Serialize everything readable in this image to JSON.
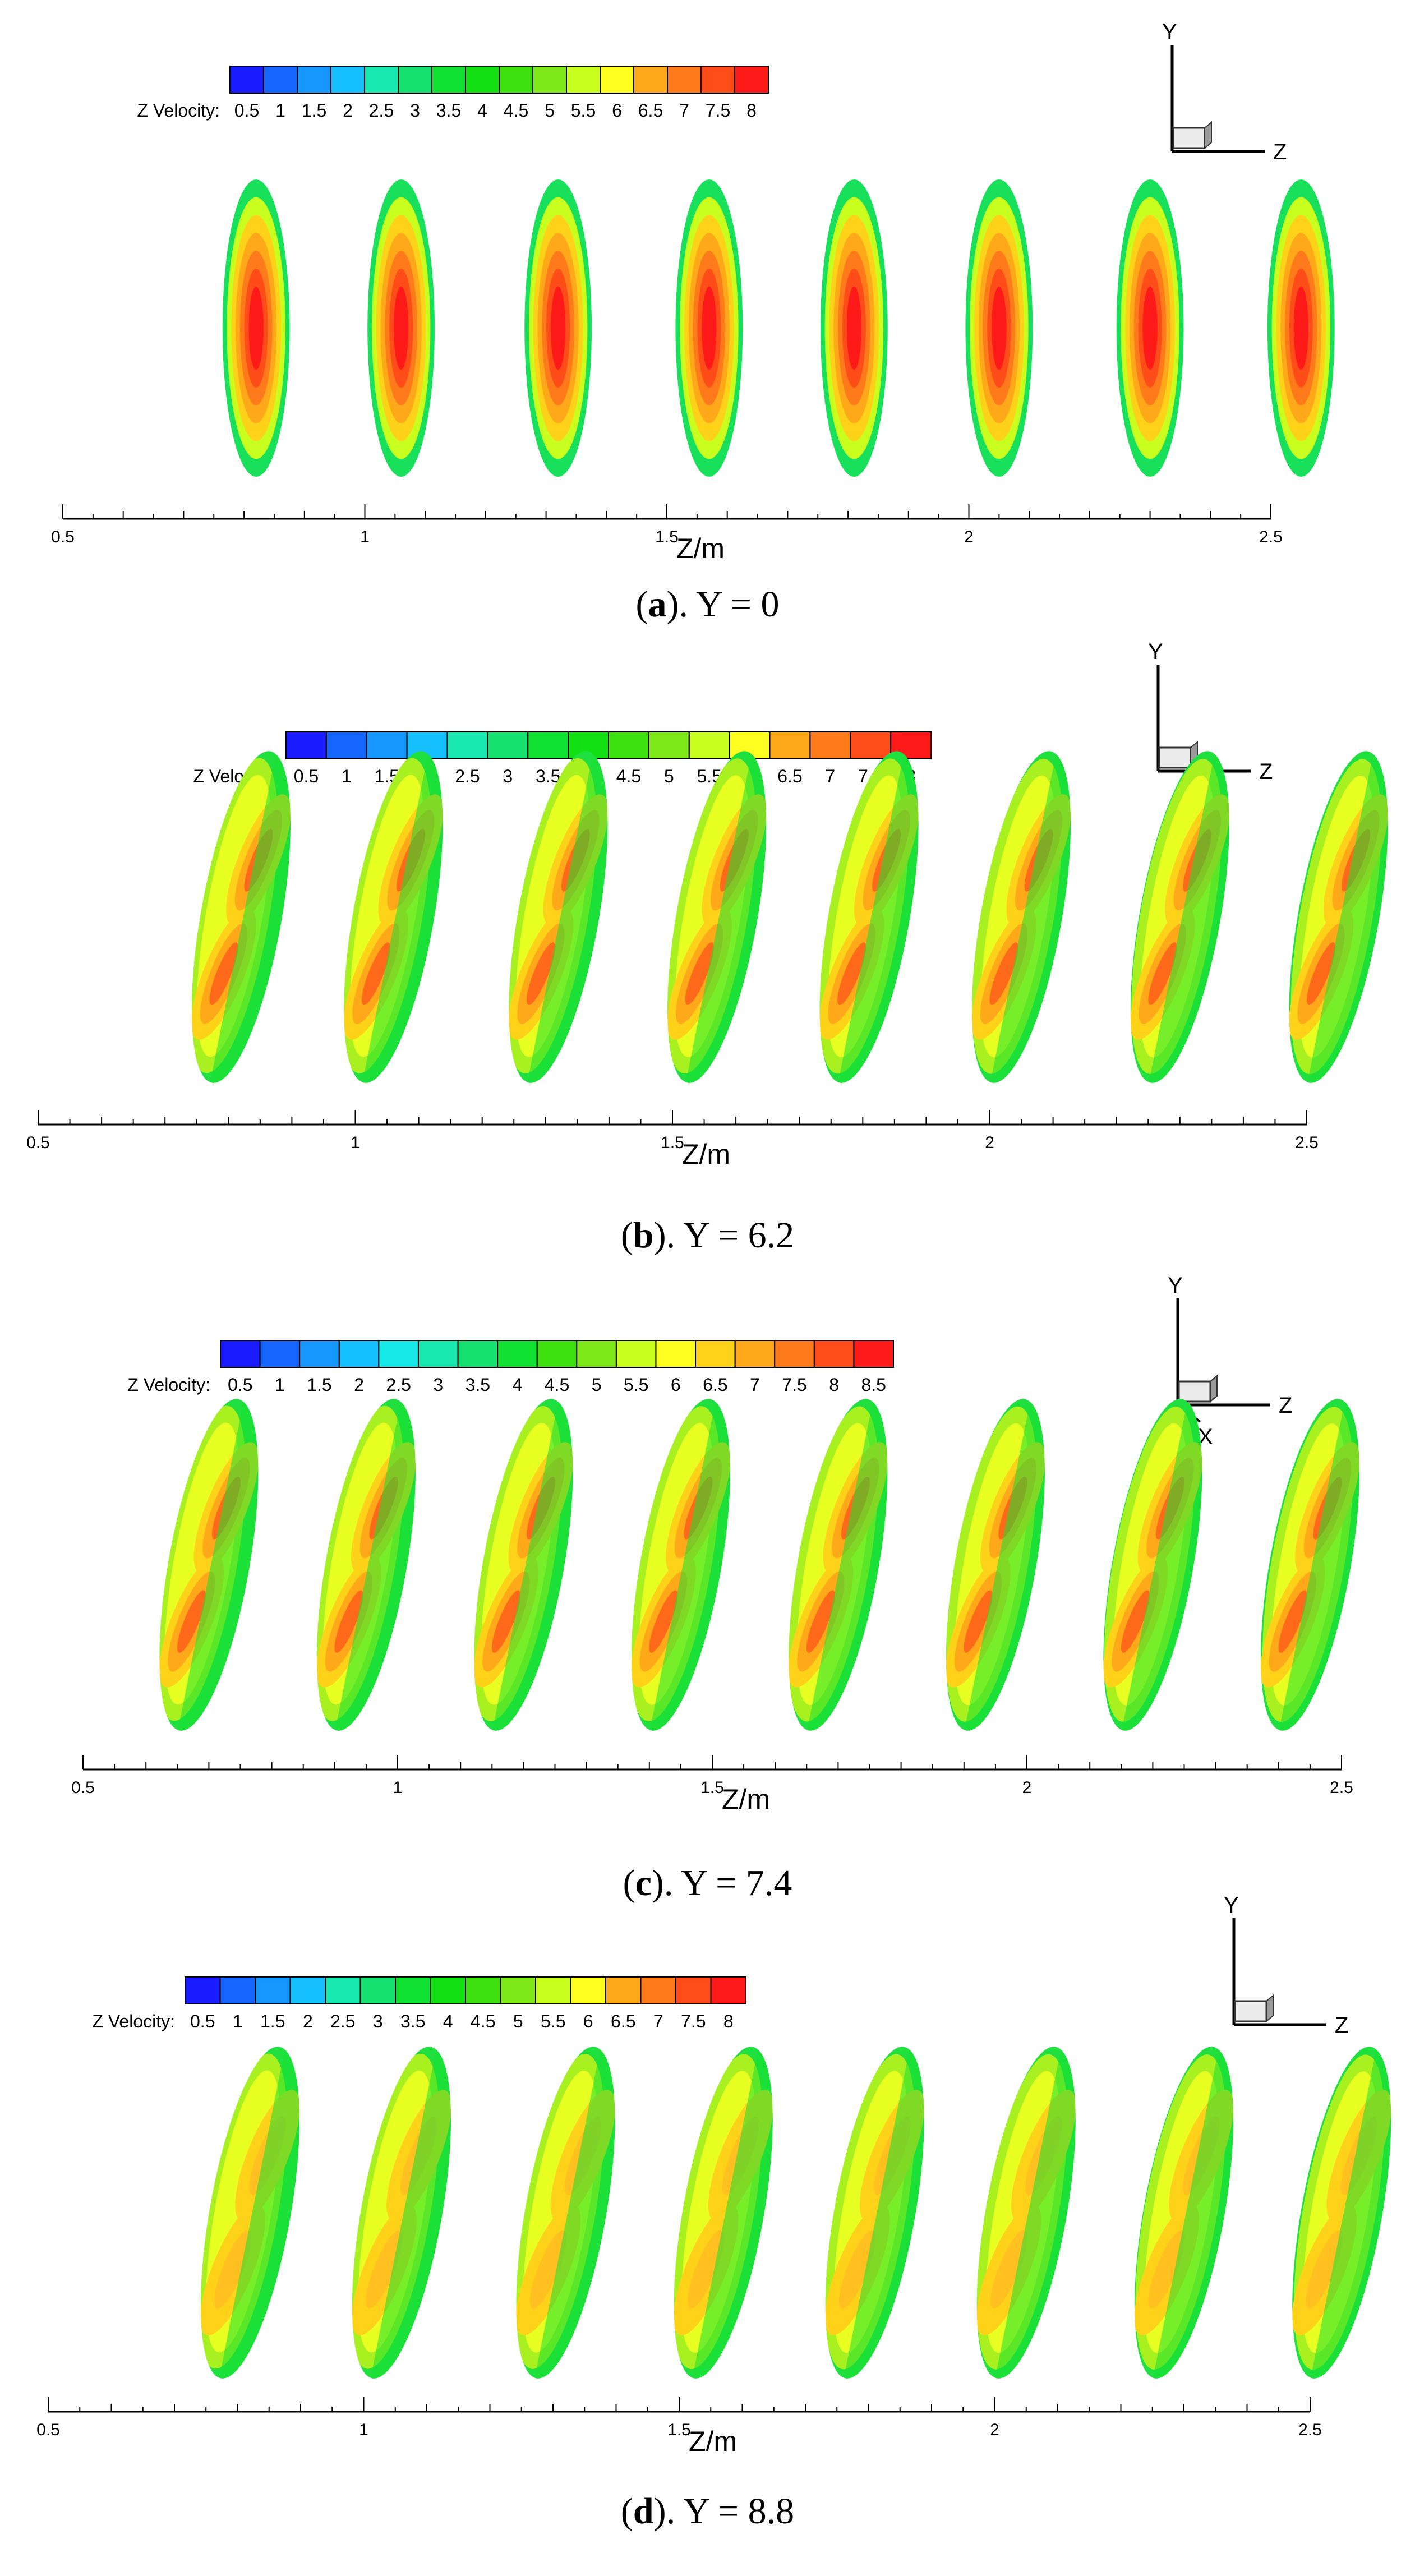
{
  "chart_data": [
    {
      "type": "heatmap",
      "panel": "a",
      "caption": {
        "letter": "a",
        "rest": "). Y = 0"
      },
      "colorbar": {
        "label": "Z Velocity:",
        "levels": [
          "0.5",
          "1",
          "1.5",
          "2",
          "2.5",
          "3",
          "3.5",
          "4",
          "4.5",
          "5",
          "5.5",
          "6",
          "6.5",
          "7",
          "7.5",
          "8"
        ]
      },
      "xaxis": {
        "label": "Z/m",
        "ticks": [
          "0.5",
          "1",
          "1.5",
          "2",
          "2.5"
        ],
        "range": [
          0.5,
          2.5
        ]
      },
      "axes_triad": {
        "y": "Y",
        "z": "Z",
        "x": ""
      },
      "slices_z": [
        0.82,
        1.06,
        1.32,
        1.57,
        1.81,
        2.05,
        2.3,
        2.55
      ],
      "pattern": "symmetric"
    },
    {
      "type": "heatmap",
      "panel": "b",
      "caption": {
        "letter": "b",
        "rest": "). Y = 6.2"
      },
      "colorbar": {
        "label": "Z Velocity:",
        "levels": [
          "0.5",
          "1",
          "1.5",
          "2",
          "2.5",
          "3",
          "3.5",
          "4",
          "4.5",
          "5",
          "5.5",
          "6",
          "6.5",
          "7",
          "7.5",
          "8"
        ]
      },
      "xaxis": {
        "label": "Z/m",
        "ticks": [
          "0.5",
          "1",
          "1.5",
          "2",
          "2.5"
        ],
        "range": [
          0.5,
          2.5
        ]
      },
      "axes_triad": {
        "y": "Y",
        "z": "Z",
        "x": ""
      },
      "slices_z": [
        0.82,
        1.06,
        1.32,
        1.57,
        1.81,
        2.05,
        2.3,
        2.55
      ],
      "pattern": "swirl"
    },
    {
      "type": "heatmap",
      "panel": "c",
      "caption": {
        "letter": "c",
        "rest": "). Y = 7.4"
      },
      "colorbar": {
        "label": "Z Velocity:",
        "levels": [
          "0.5",
          "1",
          "1.5",
          "2",
          "2.5",
          "3",
          "3.5",
          "4",
          "4.5",
          "5",
          "5.5",
          "6",
          "6.5",
          "7",
          "7.5",
          "8",
          "8.5"
        ]
      },
      "xaxis": {
        "label": "Z/m",
        "ticks": [
          "0.5",
          "1",
          "1.5",
          "2",
          "2.5"
        ],
        "range": [
          0.5,
          2.5
        ]
      },
      "axes_triad": {
        "y": "Y",
        "z": "Z",
        "x": "X"
      },
      "slices_z": [
        0.7,
        0.95,
        1.2,
        1.45,
        1.7,
        1.95,
        2.2,
        2.45
      ],
      "pattern": "swirl"
    },
    {
      "type": "heatmap",
      "panel": "d",
      "caption": {
        "letter": "d",
        "rest": "). Y = 8.8"
      },
      "colorbar": {
        "label": "Z Velocity:",
        "levels": [
          "0.5",
          "1",
          "1.5",
          "2",
          "2.5",
          "3",
          "3.5",
          "4",
          "4.5",
          "5",
          "5.5",
          "6",
          "6.5",
          "7",
          "7.5",
          "8"
        ]
      },
      "xaxis": {
        "label": "Z/m",
        "ticks": [
          "0.5",
          "1",
          "1.5",
          "2",
          "2.5"
        ],
        "range": [
          0.5,
          2.5
        ]
      },
      "axes_triad": {
        "y": "Y",
        "z": "Z",
        "x": ""
      },
      "slices_z": [
        0.82,
        1.06,
        1.32,
        1.57,
        1.81,
        2.05,
        2.3,
        2.55
      ],
      "pattern": "weak"
    }
  ],
  "colormap": [
    "#1b1bff",
    "#1565ff",
    "#1696ff",
    "#16bfff",
    "#18eaea",
    "#18e8b0",
    "#16e070",
    "#10e030",
    "#12e012",
    "#3fe010",
    "#7ee818",
    "#c8ff1e",
    "#ffff20",
    "#ffd21a",
    "#ffa81a",
    "#ff7a1a",
    "#ff4d1a",
    "#ff1a1a"
  ]
}
